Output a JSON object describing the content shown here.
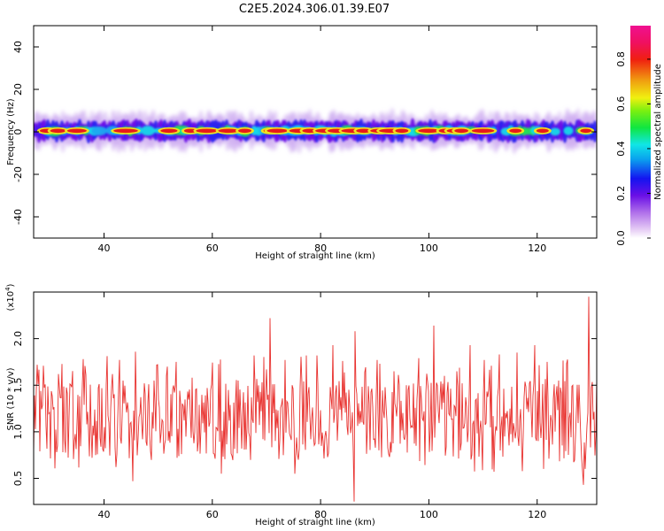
{
  "chart_data": [
    {
      "type": "heatmap",
      "title": "C2E5.2024.306.01.39.E07",
      "xlabel": "Height of straight line (km)",
      "ylabel": "Frequency (Hz)",
      "xlim": [
        27,
        131
      ],
      "ylim": [
        -50,
        50
      ],
      "xticks": [
        40,
        60,
        80,
        100,
        120
      ],
      "yticks": [
        40,
        20,
        0,
        -20,
        -40
      ],
      "ytick_labels": [
        "40",
        "20",
        "0",
        "-20",
        "-40"
      ],
      "colorbar": {
        "label": "Normalized spectral amplitude",
        "range": [
          0,
          0.95
        ],
        "ticks": [
          0.0,
          0.2,
          0.4,
          0.6,
          0.8
        ],
        "tick_labels": [
          "0.0",
          "0.2",
          "0.4",
          "0.6",
          "0.8"
        ]
      },
      "description_band": {
        "center_hz": 0.5,
        "half_width_hz": 3
      },
      "ridge_peaks_km": [
        29.5,
        31.5,
        35,
        44,
        52,
        56,
        59,
        63,
        66,
        71,
        72,
        76,
        78,
        81,
        83,
        86,
        88,
        91,
        93,
        95,
        100,
        103,
        105,
        106,
        110,
        116,
        121,
        129
      ]
    },
    {
      "type": "line",
      "xlabel": "Height of straight line (km)",
      "ylabel": "SNR (10 * v/v)",
      "multiplier_label": "(x10",
      "multiplier_exponent": "4",
      "multiplier_close": ")",
      "xlim": [
        27,
        131
      ],
      "ylim": [
        0.22,
        2.5
      ],
      "xticks": [
        40,
        60,
        80,
        100,
        120
      ],
      "yticks": [
        0.5,
        1.0,
        1.5,
        2.0
      ],
      "ytick_labels": [
        "0.5",
        "1.0",
        "1.5",
        "2.0"
      ],
      "series": [
        {
          "color": "#e8312e",
          "mean": 1.12,
          "spikes": [
            {
              "x": 27.5,
              "y": 1.45
            },
            {
              "x": 31.5,
              "y": 1.62
            },
            {
              "x": 34.0,
              "y": 1.48
            },
            {
              "x": 36.2,
              "y": 1.78
            },
            {
              "x": 38.5,
              "y": 0.75
            },
            {
              "x": 41.5,
              "y": 1.62
            },
            {
              "x": 43.5,
              "y": 1.55
            },
            {
              "x": 45.8,
              "y": 1.86
            },
            {
              "x": 45.3,
              "y": 0.47
            },
            {
              "x": 49.2,
              "y": 1.55
            },
            {
              "x": 51.5,
              "y": 1.6
            },
            {
              "x": 53.4,
              "y": 1.75
            },
            {
              "x": 56.2,
              "y": 1.58
            },
            {
              "x": 59.0,
              "y": 1.47
            },
            {
              "x": 61.7,
              "y": 0.55
            },
            {
              "x": 64.8,
              "y": 1.55
            },
            {
              "x": 67.7,
              "y": 1.82
            },
            {
              "x": 70.6,
              "y": 2.22
            },
            {
              "x": 73.5,
              "y": 1.77
            },
            {
              "x": 75.3,
              "y": 0.55
            },
            {
              "x": 77.3,
              "y": 1.82
            },
            {
              "x": 79.4,
              "y": 1.82
            },
            {
              "x": 82.3,
              "y": 1.93
            },
            {
              "x": 84.1,
              "y": 1.76
            },
            {
              "x": 86.4,
              "y": 2.08
            },
            {
              "x": 86.2,
              "y": 0.25
            },
            {
              "x": 88.2,
              "y": 1.64
            },
            {
              "x": 90.5,
              "y": 1.77
            },
            {
              "x": 93.5,
              "y": 1.65
            },
            {
              "x": 95.8,
              "y": 1.5
            },
            {
              "x": 98.1,
              "y": 1.79
            },
            {
              "x": 100.9,
              "y": 2.14
            },
            {
              "x": 102.8,
              "y": 1.6
            },
            {
              "x": 105.1,
              "y": 1.65
            },
            {
              "x": 107.6,
              "y": 1.93
            },
            {
              "x": 110.2,
              "y": 1.77
            },
            {
              "x": 113.0,
              "y": 1.83
            },
            {
              "x": 116.3,
              "y": 1.85
            },
            {
              "x": 119.6,
              "y": 1.93
            },
            {
              "x": 121.8,
              "y": 1.75
            },
            {
              "x": 124.0,
              "y": 1.55
            },
            {
              "x": 126.6,
              "y": 1.5
            },
            {
              "x": 128.5,
              "y": 0.43
            },
            {
              "x": 129.6,
              "y": 2.45
            },
            {
              "x": 130.4,
              "y": 1.13
            }
          ]
        }
      ]
    }
  ]
}
